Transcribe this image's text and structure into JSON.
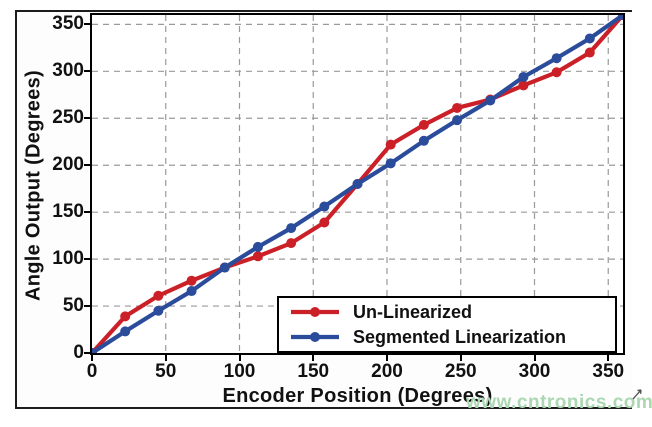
{
  "watermark": "www.cntronics.com",
  "chart_data": {
    "type": "line",
    "title": "",
    "xlabel": "Encoder Position (Degrees)",
    "ylabel": "Angle Output (Degrees)",
    "xlim": [
      0,
      360
    ],
    "ylim": [
      0,
      360
    ],
    "x_ticks": [
      0,
      50,
      100,
      150,
      200,
      250,
      300,
      350
    ],
    "y_ticks": [
      0,
      50,
      100,
      150,
      200,
      250,
      300,
      350
    ],
    "grid": "dashed",
    "grid_color": "#9a9a9a",
    "legend_position": "bottom-right",
    "x": [
      0,
      22.5,
      45,
      67.5,
      90,
      112.5,
      135,
      157.5,
      180,
      202.5,
      225,
      247.5,
      270,
      292.5,
      315,
      337.5,
      360
    ],
    "series": [
      {
        "name": "Un-Linearized",
        "color": "#cb2027",
        "marker": "circle",
        "values": [
          0,
          39,
          61,
          77,
          91,
          103,
          117,
          139,
          180,
          222,
          243,
          261,
          270,
          285,
          299,
          320,
          360
        ]
      },
      {
        "name": "Segmented Linearization",
        "color": "#2b4b9b",
        "marker": "circle",
        "values": [
          0,
          23,
          45,
          66,
          91,
          113,
          133,
          156,
          180,
          202,
          226,
          248,
          269,
          294,
          314,
          335,
          360
        ]
      }
    ]
  }
}
